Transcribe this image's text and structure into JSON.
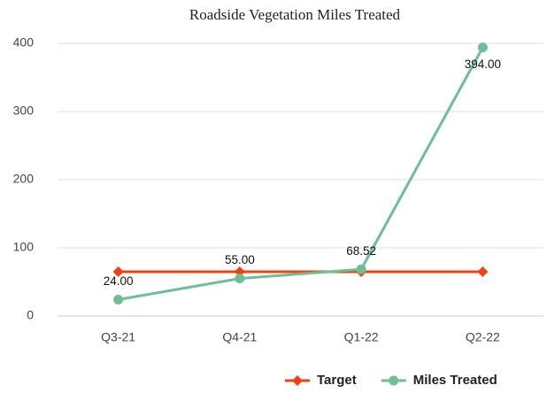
{
  "chart_data": {
    "type": "line",
    "title": "Roadside Vegetation Miles Treated",
    "categories": [
      "Q3-21",
      "Q4-21",
      "Q1-22",
      "Q2-22"
    ],
    "series": [
      {
        "name": "Target",
        "color": "#f2410f",
        "values": [
          65,
          65,
          65,
          65
        ]
      },
      {
        "name": "Miles Treated",
        "color": "#6dbf97",
        "values": [
          24,
          55,
          68.52,
          394
        ],
        "value_labels": [
          "24.00",
          "55.00",
          "68.52",
          "394.00"
        ]
      }
    ],
    "ylim": [
      0,
      400
    ],
    "yticks": [
      0,
      100,
      200,
      300,
      400
    ],
    "grid": true,
    "legend": "bottom-right"
  }
}
